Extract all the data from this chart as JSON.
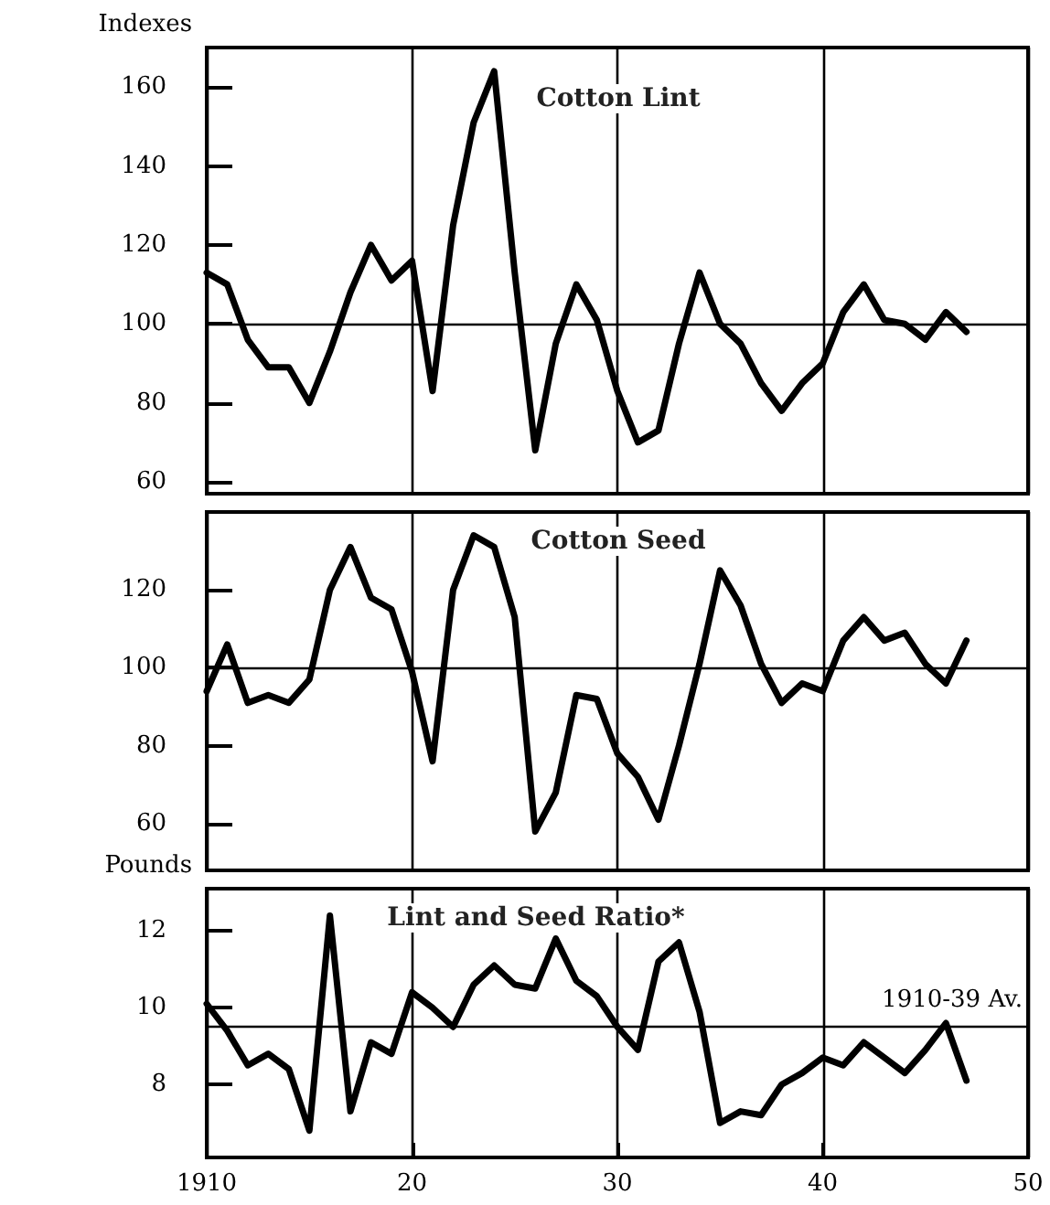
{
  "chart_data": [
    {
      "type": "line",
      "title": "Cotton Lint",
      "ylabel": "Indexes",
      "tick_labels": "y",
      "grid": "x",
      "marker": "none",
      "line_style": "solid",
      "x": [
        1910,
        1911,
        1912,
        1913,
        1914,
        1915,
        1916,
        1917,
        1918,
        1919,
        1920,
        1921,
        1922,
        1923,
        1924,
        1925,
        1926,
        1927,
        1928,
        1929,
        1930,
        1931,
        1932,
        1933,
        1934,
        1935,
        1936,
        1937,
        1938,
        1939,
        1940,
        1941,
        1942,
        1943,
        1944,
        1945,
        1946,
        1947
      ],
      "series": [
        {
          "color": "#000000",
          "values": [
            113,
            110,
            96,
            89,
            89,
            80,
            93,
            108,
            120,
            111,
            116,
            83,
            125,
            151,
            164,
            113,
            68,
            95,
            110,
            101,
            83,
            70,
            73,
            95,
            113,
            100,
            95,
            85,
            78,
            85,
            90,
            103,
            110,
            101,
            100,
            96,
            103,
            98
          ]
        }
      ],
      "xlim": [
        1910,
        1950
      ],
      "xticks": [
        {
          "value": 1910,
          "label": null
        },
        {
          "value": 1920,
          "label": null
        },
        {
          "value": 1930,
          "label": null
        },
        {
          "value": 1940,
          "label": null
        },
        {
          "value": 1950,
          "label": null
        }
      ],
      "ylim": [
        57,
        170
      ],
      "yticks": [
        60,
        80,
        100,
        120,
        140,
        160
      ],
      "ref_lines": [
        {
          "axis": "y",
          "value": 100,
          "color": "#000000"
        }
      ]
    },
    {
      "type": "line",
      "title": "Cotton Seed",
      "tick_labels": "y",
      "grid": "x",
      "marker": "none",
      "line_style": "solid",
      "x": [
        1910,
        1911,
        1912,
        1913,
        1914,
        1915,
        1916,
        1917,
        1918,
        1919,
        1920,
        1921,
        1922,
        1923,
        1924,
        1925,
        1926,
        1927,
        1928,
        1929,
        1930,
        1931,
        1932,
        1933,
        1934,
        1935,
        1936,
        1937,
        1938,
        1939,
        1940,
        1941,
        1942,
        1943,
        1944,
        1945,
        1946,
        1947
      ],
      "series": [
        {
          "color": "#000000",
          "values": [
            94,
            106,
            91,
            93,
            91,
            97,
            120,
            131,
            118,
            115,
            99,
            76,
            120,
            134,
            131,
            113,
            58,
            68,
            93,
            92,
            78,
            72,
            61,
            80,
            101,
            125,
            116,
            101,
            91,
            96,
            94,
            107,
            113,
            107,
            109,
            101,
            96,
            107
          ]
        }
      ],
      "xlim": [
        1910,
        1950
      ],
      "xticks": [
        {
          "value": 1910,
          "label": null
        },
        {
          "value": 1920,
          "label": null
        },
        {
          "value": 1930,
          "label": null
        },
        {
          "value": 1940,
          "label": null
        },
        {
          "value": 1950,
          "label": null
        }
      ],
      "ylim": [
        48,
        140
      ],
      "yticks": [
        60,
        80,
        100,
        120
      ],
      "ref_lines": [
        {
          "axis": "y",
          "value": 100,
          "color": "#000000"
        }
      ]
    },
    {
      "type": "line",
      "title": "Lint and Seed Ratio*",
      "ylabel": "Pounds",
      "grid": "x",
      "marker": "none",
      "line_style": "solid",
      "x": [
        1910,
        1911,
        1912,
        1913,
        1914,
        1915,
        1916,
        1917,
        1918,
        1919,
        1920,
        1921,
        1922,
        1923,
        1924,
        1925,
        1926,
        1927,
        1928,
        1929,
        1930,
        1931,
        1932,
        1933,
        1934,
        1935,
        1936,
        1937,
        1938,
        1939,
        1940,
        1941,
        1942,
        1943,
        1944,
        1945,
        1946,
        1947
      ],
      "series": [
        {
          "color": "#000000",
          "values": [
            10.1,
            9.4,
            8.5,
            8.8,
            8.4,
            6.8,
            12.4,
            7.3,
            9.1,
            8.8,
            10.4,
            10.0,
            9.5,
            10.6,
            11.1,
            10.6,
            10.5,
            11.8,
            10.7,
            10.3,
            9.5,
            8.9,
            11.2,
            11.7,
            9.9,
            7.0,
            7.3,
            7.2,
            8.0,
            8.3,
            8.7,
            8.5,
            9.1,
            8.7,
            8.3,
            8.9,
            9.6,
            8.1
          ]
        }
      ],
      "xlim": [
        1910,
        1950
      ],
      "xticks": [
        {
          "value": 1910,
          "label": "1910"
        },
        {
          "value": 1920,
          "label": "20"
        },
        {
          "value": 1930,
          "label": "30"
        },
        {
          "value": 1940,
          "label": "40"
        },
        {
          "value": 1950,
          "label": "50"
        }
      ],
      "ylim": [
        6.1,
        13.1
      ],
      "yticks": [
        8,
        10,
        12
      ],
      "ref_lines": [
        {
          "axis": "y",
          "value": 9.5,
          "label": "1910-39 Av.",
          "color": "#000000"
        }
      ]
    }
  ]
}
